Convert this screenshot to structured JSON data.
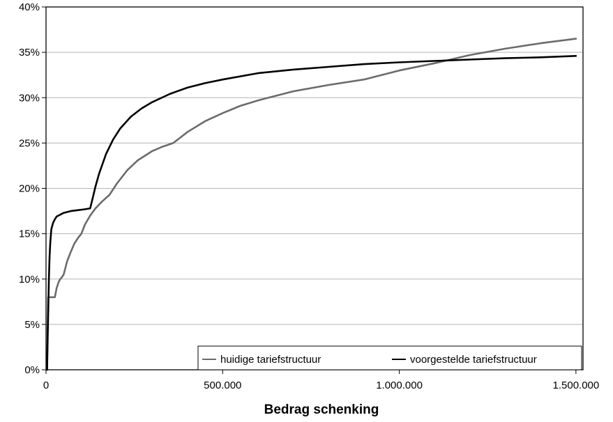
{
  "chart_data": {
    "type": "line",
    "title": "",
    "xlabel": "Bedrag schenking",
    "ylabel": "",
    "xlim": [
      0,
      1520000
    ],
    "ylim": [
      0,
      40
    ],
    "x_ticks": [
      0,
      500000,
      1000000,
      1500000
    ],
    "x_tick_labels": [
      "0",
      "500.000",
      "1.000.000",
      "1.500.000"
    ],
    "y_ticks": [
      0,
      5,
      10,
      15,
      20,
      25,
      30,
      35,
      40
    ],
    "y_tick_labels": [
      "0%",
      "5%",
      "10%",
      "15%",
      "20%",
      "25%",
      "30%",
      "35%",
      "40%"
    ],
    "grid": "horizontal",
    "legend_position": "bottom-right",
    "series": [
      {
        "name": "huidige tariefstructuur",
        "color": "#6b6b6b",
        "x": [
          3000,
          6000,
          10000,
          20000,
          25000,
          30000,
          35000,
          40000,
          45000,
          50000,
          60000,
          70000,
          80000,
          90000,
          100000,
          110000,
          125000,
          140000,
          160000,
          180000,
          200000,
          230000,
          260000,
          300000,
          330000,
          360000,
          380000,
          400000,
          450000,
          500000,
          550000,
          600000,
          650000,
          700000,
          800000,
          900000,
          1000000,
          1100000,
          1200000,
          1300000,
          1400000,
          1500000
        ],
        "y": [
          0,
          8,
          8,
          8,
          8,
          9,
          9.6,
          10,
          10.2,
          10.5,
          12,
          13,
          13.9,
          14.5,
          15,
          16,
          17,
          17.8,
          18.6,
          19.3,
          20.5,
          22,
          23.1,
          24.1,
          24.6,
          25,
          25.6,
          26.2,
          27.4,
          28.3,
          29.1,
          29.7,
          30.2,
          30.7,
          31.4,
          32,
          33,
          33.8,
          34.7,
          35.4,
          36,
          36.5
        ]
      },
      {
        "name": "voorgestelde tariefstructuur",
        "color": "#000000",
        "x": [
          3000,
          5000,
          8000,
          10000,
          12000,
          15000,
          20000,
          25000,
          30000,
          40000,
          50000,
          70000,
          90000,
          110000,
          125000,
          130000,
          140000,
          150000,
          170000,
          190000,
          210000,
          240000,
          270000,
          300000,
          350000,
          400000,
          450000,
          500000,
          600000,
          700000,
          800000,
          900000,
          1000000,
          1100000,
          1200000,
          1300000,
          1400000,
          1500000
        ],
        "y": [
          0,
          4,
          10,
          12.5,
          14,
          15.5,
          16.2,
          16.6,
          16.9,
          17.1,
          17.3,
          17.5,
          17.6,
          17.7,
          17.8,
          18.6,
          20.2,
          21.6,
          23.8,
          25.4,
          26.6,
          27.9,
          28.8,
          29.5,
          30.4,
          31.1,
          31.6,
          32,
          32.7,
          33.1,
          33.4,
          33.7,
          33.9,
          34.05,
          34.2,
          34.35,
          34.45,
          34.6
        ]
      }
    ]
  }
}
